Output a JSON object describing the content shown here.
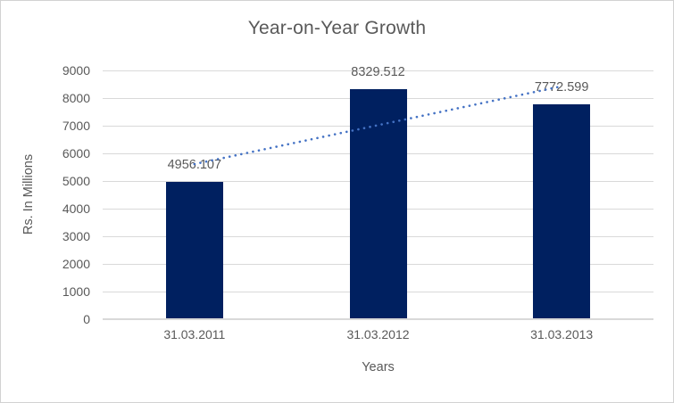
{
  "chart_data": {
    "type": "bar",
    "title": "Year-on-Year Growth",
    "xlabel": "Years",
    "ylabel": "Rs. In Millions",
    "categories": [
      "31.03.2011",
      "31.03.2012",
      "31.03.2013"
    ],
    "values": [
      4956.107,
      8329.512,
      7772.599
    ],
    "data_labels": [
      "4956.107",
      "8329.512",
      "7772.599"
    ],
    "ylim": [
      0,
      9000
    ],
    "yticks": [
      0,
      1000,
      2000,
      3000,
      4000,
      5000,
      6000,
      7000,
      8000,
      9000
    ],
    "grid": "horizontal",
    "legend": "none",
    "trendline": {
      "type": "linear",
      "style": "dotted"
    },
    "colors": {
      "bar": "#002060",
      "trendline": "#4472C4",
      "text": "#595959",
      "gridline": "#D9D9D9",
      "axis_line": "#D9D9D9",
      "background": "#FFFFFF",
      "border": "#D2D2D2"
    }
  }
}
